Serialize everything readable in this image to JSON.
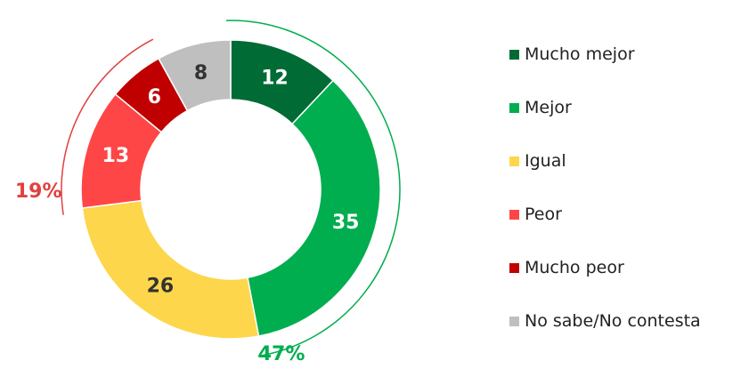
{
  "chart_data": {
    "type": "pie",
    "donut": true,
    "categories": [
      "Mucho mejor",
      "Mejor",
      "Igual",
      "Peor",
      "Mucho peor",
      "No sabe/No contesta"
    ],
    "values": [
      12,
      35,
      26,
      13,
      6,
      8
    ],
    "colors": [
      "#006B35",
      "#00AD4F",
      "#FDD64B",
      "#FF4646",
      "#C00000",
      "#BFBFBF"
    ],
    "label_colors": [
      "#ffffff",
      "#ffffff",
      "#333333",
      "#ffffff",
      "#ffffff",
      "#333333"
    ],
    "groups": [
      {
        "label": "47%",
        "color": "#00AD4F",
        "slices": [
          0,
          1
        ]
      },
      {
        "label": "19%",
        "color": "#E0413F",
        "slices": [
          3,
          4
        ]
      }
    ],
    "legend_position": "right"
  }
}
